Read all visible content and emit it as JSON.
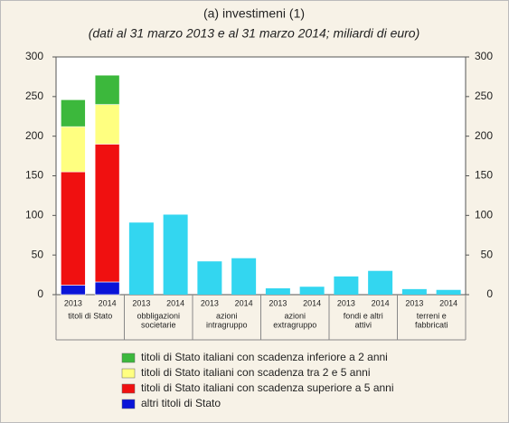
{
  "chart_data": {
    "type": "stacked-bar",
    "title": "(a) investimeni (1)",
    "subtitle": "(dati al 31 marzo 2013 e al 31 marzo 2014; miliardi di euro)",
    "categories": [
      "2013",
      "2014",
      "2013",
      "2014",
      "2013",
      "2014",
      "2013",
      "2014",
      "2013",
      "2014",
      "2013",
      "2014"
    ],
    "group_labels": [
      [
        "titoli di Stato"
      ],
      [
        "obbligazioni",
        "societarie"
      ],
      [
        "azioni",
        "intragruppo"
      ],
      [
        "azioni",
        "extragruppo"
      ],
      [
        "fondi e altri",
        "attivi"
      ],
      [
        "terreni e",
        "fabbricati"
      ]
    ],
    "series": [
      {
        "name": "altri titoli di Stato",
        "color": "#0a14d8",
        "values": [
          12,
          16,
          null,
          null,
          null,
          null,
          null,
          null,
          null,
          null,
          null,
          null
        ]
      },
      {
        "name": "titoli di Stato italiani con scadenza superiore a 5 anni",
        "color": "#f01010",
        "values": [
          143,
          174,
          null,
          null,
          null,
          null,
          null,
          null,
          null,
          null,
          null,
          null
        ]
      },
      {
        "name": "titoli di Stato italiani con scadenza tra 2 e 5 anni",
        "color": "#ffff80",
        "values": [
          57,
          50,
          null,
          null,
          null,
          null,
          null,
          null,
          null,
          null,
          null,
          null
        ]
      },
      {
        "name": "titoli di Stato italiani con scadenza inferiore a 2 anni",
        "color": "#3cb83c",
        "values": [
          34,
          37,
          null,
          null,
          null,
          null,
          null,
          null,
          null,
          null,
          null,
          null
        ]
      }
    ],
    "values": [
      null,
      null,
      91,
      101,
      42,
      46,
      8,
      10,
      23,
      30,
      7,
      6
    ],
    "color": "#33d6f0",
    "ylim": [
      0,
      300
    ],
    "yticks": [
      0,
      50,
      100,
      150,
      200,
      250,
      300
    ],
    "y2lim": [
      0,
      300
    ],
    "y2ticks": [
      0,
      50,
      100,
      150,
      200,
      250,
      300
    ]
  }
}
